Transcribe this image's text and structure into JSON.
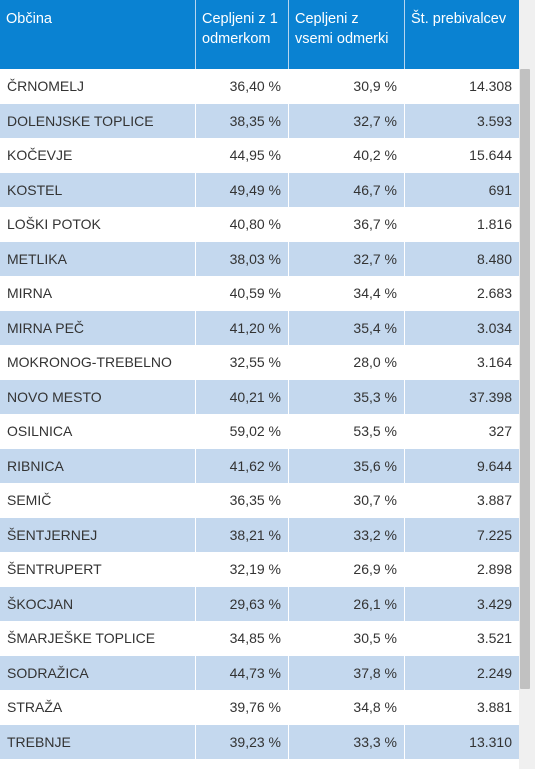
{
  "table": {
    "headers": [
      "Občina",
      "Cepljeni z 1 odmerkom",
      "Cepljeni z vsemi odmerki",
      "Št. prebivalcev"
    ],
    "rows": [
      [
        "ČRNOMELJ",
        "36,40 %",
        "30,9 %",
        "14.308"
      ],
      [
        "DOLENJSKE TOPLICE",
        "38,35 %",
        "32,7 %",
        "3.593"
      ],
      [
        "KOČEVJE",
        "44,95 %",
        "40,2 %",
        "15.644"
      ],
      [
        "KOSTEL",
        "49,49 %",
        "46,7 %",
        "691"
      ],
      [
        "LOŠKI POTOK",
        "40,80 %",
        "36,7 %",
        "1.816"
      ],
      [
        "METLIKA",
        "38,03 %",
        "32,7 %",
        "8.480"
      ],
      [
        "MIRNA",
        "40,59 %",
        "34,4 %",
        "2.683"
      ],
      [
        "MIRNA PEČ",
        "41,20 %",
        "35,4 %",
        "3.034"
      ],
      [
        "MOKRONOG-TREBELNO",
        "32,55 %",
        "28,0 %",
        "3.164"
      ],
      [
        "NOVO MESTO",
        "40,21 %",
        "35,3 %",
        "37.398"
      ],
      [
        "OSILNICA",
        "59,02 %",
        "53,5 %",
        "327"
      ],
      [
        "RIBNICA",
        "41,62 %",
        "35,6 %",
        "9.644"
      ],
      [
        "SEMIČ",
        "36,35 %",
        "30,7 %",
        "3.887"
      ],
      [
        "ŠENTJERNEJ",
        "38,21 %",
        "33,2 %",
        "7.225"
      ],
      [
        "ŠENTRUPERT",
        "32,19 %",
        "26,9 %",
        "2.898"
      ],
      [
        "ŠKOCJAN",
        "29,63 %",
        "26,1 %",
        "3.429"
      ],
      [
        "ŠMARJEŠKE TOPLICE",
        "34,85 %",
        "30,5 %",
        "3.521"
      ],
      [
        "SODRAŽICA",
        "44,73 %",
        "37,8 %",
        "2.249"
      ],
      [
        "STRAŽA",
        "39,76 %",
        "34,8 %",
        "3.881"
      ],
      [
        "TREBNJE",
        "39,23 %",
        "33,3 %",
        "13.310"
      ]
    ]
  },
  "colors": {
    "header_bg": "#0a82d2",
    "row_alt_bg": "#c4d8ee"
  }
}
